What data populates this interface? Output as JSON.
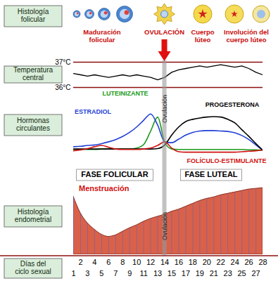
{
  "follicular_histology": {
    "row_label": "Histología folicular",
    "stages": [
      "Maduración folicular",
      "OVULACIÓN",
      "Cuerpo lúteo",
      "Involución del cuerpo lúteo"
    ]
  },
  "ovulation": {
    "day": 14,
    "label": "Ovulación"
  },
  "phases": [
    "FASE FOLICULAR",
    "FASE LUTEAL"
  ],
  "chart_data": [
    {
      "type": "line",
      "y_label": "Temperatura central",
      "x": [
        1,
        2,
        3,
        4,
        5,
        6,
        7,
        8,
        9,
        10,
        11,
        12,
        13,
        14,
        15,
        16,
        17,
        18,
        19,
        20,
        21,
        22,
        23,
        24,
        25,
        26,
        27,
        28
      ],
      "xlim": [
        1,
        28
      ],
      "ylim": [
        36,
        37
      ],
      "yticks": [
        {
          "value": 36,
          "label": "36°C"
        },
        {
          "value": 37,
          "label": "37°C"
        }
      ],
      "grid": true,
      "tick_labels": "y",
      "color": "#000000",
      "values": [
        36.55,
        36.5,
        36.45,
        36.5,
        36.45,
        36.4,
        36.45,
        36.5,
        36.45,
        36.5,
        36.45,
        36.4,
        36.3,
        36.4,
        36.6,
        36.7,
        36.75,
        36.8,
        36.85,
        36.8,
        36.85,
        36.9,
        36.85,
        36.8,
        36.85,
        36.75,
        36.6,
        36.5
      ]
    },
    {
      "type": "line",
      "y_label": "Hormonas circulantes",
      "x": [
        1,
        2,
        3,
        4,
        5,
        6,
        7,
        8,
        9,
        10,
        11,
        12,
        13,
        14,
        15,
        16,
        17,
        18,
        19,
        20,
        21,
        22,
        23,
        24,
        25,
        26,
        27,
        28
      ],
      "xlim": [
        1,
        28
      ],
      "ylim": [
        0,
        100
      ],
      "tick_labels": false,
      "series": [
        {
          "name": "LUTEINIZANTE",
          "color": "#1a9a1a",
          "values": [
            9,
            9,
            9,
            9,
            10,
            11,
            10,
            10,
            10,
            12,
            20,
            50,
            81,
            25,
            10,
            9,
            9,
            9,
            9,
            9,
            9,
            9,
            9,
            9,
            9,
            8,
            8,
            7
          ]
        },
        {
          "name": "ESTRADIOL",
          "color": "#1f3fd6",
          "values": [
            15,
            16,
            18,
            19,
            22,
            26,
            31,
            38,
            47,
            59,
            74,
            88,
            63,
            26,
            24,
            32,
            41,
            47,
            50,
            51,
            51,
            50,
            49,
            46,
            40,
            31,
            19,
            7
          ]
        },
        {
          "name": "PROGESTERONA",
          "color": "#000000",
          "values": [
            10,
            10,
            10,
            10,
            10,
            10,
            10,
            10,
            10,
            10,
            10,
            10,
            11,
            19,
            41,
            59,
            71,
            76,
            79,
            81,
            82,
            81,
            76,
            68,
            53,
            38,
            22,
            7
          ]
        },
        {
          "name": "FOLÍCULO-ESTIMULANTE",
          "color": "#d01010",
          "values": [
            6,
            8,
            11,
            15,
            18,
            14,
            10,
            9,
            9,
            9,
            10,
            12,
            18,
            26,
            12,
            4,
            3,
            3,
            3,
            3,
            3,
            3,
            3,
            3,
            4,
            5,
            6,
            8
          ]
        }
      ]
    },
    {
      "type": "area",
      "y_label": "Histología endometrial",
      "x_label": "Días del ciclo sexual",
      "annotations": [
        "Menstruación"
      ],
      "x": [
        1,
        2,
        3,
        4,
        5,
        6,
        7,
        8,
        9,
        10,
        11,
        12,
        13,
        14,
        15,
        16,
        17,
        18,
        19,
        20,
        21,
        22,
        23,
        24,
        25,
        26,
        27,
        28
      ],
      "xlim": [
        1,
        28
      ],
      "xticks": [
        1,
        2,
        3,
        4,
        5,
        6,
        7,
        8,
        9,
        10,
        11,
        12,
        13,
        14,
        15,
        16,
        17,
        18,
        19,
        20,
        21,
        22,
        23,
        24,
        25,
        26,
        27,
        28
      ],
      "ylim": [
        0,
        100
      ],
      "tick_labels": "x",
      "color": "#d9614a",
      "values": [
        81,
        58,
        44,
        35,
        28,
        25,
        27,
        32,
        37,
        41,
        46,
        50,
        53,
        56,
        60,
        63,
        67,
        71,
        75,
        78,
        80,
        83,
        85,
        87,
        89,
        91,
        92,
        93
      ]
    }
  ]
}
